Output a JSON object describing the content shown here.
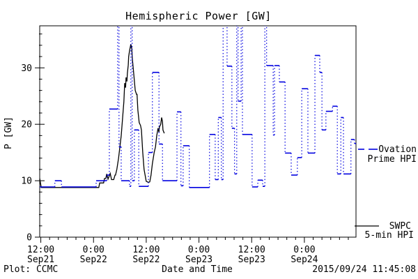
{
  "title": "Hemispheric Power [GW]",
  "axes": {
    "y_label": "P [GW]",
    "x_label": "Date and Time",
    "y_tick_values": [
      0,
      10,
      20,
      30
    ],
    "y_minor_step": 2,
    "y_max": 37.45,
    "x_major_ticks": [
      {
        "time": "12:00",
        "date": "Sep21"
      },
      {
        "time": "0:00",
        "date": "Sep22"
      },
      {
        "time": "12:00",
        "date": "Sep22"
      },
      {
        "time": "0:00",
        "date": "Sep23"
      },
      {
        "time": "12:00",
        "date": "Sep23"
      },
      {
        "time": "0:00",
        "date": "Sep24"
      }
    ],
    "x_major_step_hours": 12,
    "x_minor_step_hours": 2
  },
  "legend": {
    "ovation": {
      "line1": "Ovation",
      "line2": "Prime HPI"
    },
    "swpc": {
      "line1": "SWPC",
      "line2": "5-min HPI"
    }
  },
  "footer": {
    "credit": "Plot: CCMC",
    "timestamp": "2015/09/24 11:45:08"
  },
  "colors": {
    "ovation_blue": "#0000e0",
    "swpc_black": "#000000",
    "frame": "#000000",
    "background": "#ffffff"
  },
  "chart_data": {
    "type": "line",
    "title": "Hemispheric Power [GW]",
    "xlabel": "Date and Time",
    "ylabel": "P [GW]",
    "x_unit": "hours since 2015-09-21 12:00 UT",
    "x_range_hours": [
      -0.25,
      71.75
    ],
    "y_range": [
      0,
      37.45
    ],
    "grid": false,
    "legend_position": "right-outside",
    "note": "Ovation series is a step function; values of 40 mark off-scale spikes clipped at the plot top (drawn as dotted verticals).",
    "series": [
      {
        "name": "SWPC 5-min HPI",
        "style": "solid-line",
        "points": [
          [
            -0.25,
            10.4
          ],
          [
            0.1,
            8.8
          ],
          [
            13.2,
            8.8
          ],
          [
            13.4,
            9.6
          ],
          [
            14.3,
            9.6
          ],
          [
            14.5,
            10.4
          ],
          [
            14.8,
            10.4
          ],
          [
            15.0,
            11.2
          ],
          [
            15.3,
            10.3
          ],
          [
            15.8,
            11.3
          ],
          [
            16.1,
            10.2
          ],
          [
            16.6,
            10.2
          ],
          [
            16.9,
            11.0
          ],
          [
            17.0,
            11.0
          ],
          [
            17.3,
            12.0
          ],
          [
            17.7,
            14.0
          ],
          [
            18.0,
            16.0
          ],
          [
            18.3,
            18.0
          ],
          [
            18.6,
            21.0
          ],
          [
            18.9,
            24.0
          ],
          [
            19.1,
            27.3
          ],
          [
            19.3,
            26.5
          ],
          [
            19.4,
            28.3
          ],
          [
            19.6,
            27.6
          ],
          [
            19.7,
            29.0
          ],
          [
            19.9,
            30.5
          ],
          [
            20.0,
            32.0
          ],
          [
            20.2,
            33.0
          ],
          [
            20.4,
            33.8
          ],
          [
            20.5,
            34.2
          ],
          [
            20.7,
            33.5
          ],
          [
            20.8,
            32.0
          ],
          [
            21.2,
            28.5
          ],
          [
            21.5,
            26.0
          ],
          [
            21.8,
            25.3
          ],
          [
            21.9,
            25.3
          ],
          [
            22.1,
            22.5
          ],
          [
            22.4,
            20.3
          ],
          [
            22.7,
            19.8
          ],
          [
            22.9,
            19.0
          ],
          [
            23.2,
            15.0
          ],
          [
            23.5,
            12.0
          ],
          [
            23.9,
            10.3
          ],
          [
            24.0,
            9.9
          ],
          [
            24.5,
            9.7
          ],
          [
            24.8,
            9.8
          ],
          [
            25.1,
            11.0
          ],
          [
            25.4,
            13.0
          ],
          [
            25.8,
            15.0
          ],
          [
            26.1,
            16.0
          ],
          [
            26.4,
            18.0
          ],
          [
            26.7,
            19.3
          ],
          [
            26.9,
            18.6
          ],
          [
            27.0,
            19.5
          ],
          [
            27.3,
            20.0
          ],
          [
            27.5,
            21.2
          ],
          [
            27.7,
            20.5
          ],
          [
            27.8,
            19.0
          ],
          [
            28.1,
            18.4
          ]
        ]
      },
      {
        "name": "Ovation Prime HPI",
        "style": "step-solid-caps-dotted-verticals",
        "steps": [
          [
            -0.25,
            8.9
          ],
          [
            3.2,
            10.0
          ],
          [
            4.7,
            8.9
          ],
          [
            12.6,
            10.0
          ],
          [
            15.0,
            11.0
          ],
          [
            15.6,
            22.7
          ],
          [
            17.5,
            40
          ],
          [
            17.8,
            16.0
          ],
          [
            18.3,
            10.0
          ],
          [
            20.2,
            9.0
          ],
          [
            20.5,
            40
          ],
          [
            20.8,
            10.0
          ],
          [
            21.3,
            19.0
          ],
          [
            22.3,
            9.0
          ],
          [
            24.5,
            15.0
          ],
          [
            25.4,
            29.2
          ],
          [
            26.9,
            16.5
          ],
          [
            27.7,
            10.0
          ],
          [
            31.0,
            22.2
          ],
          [
            31.9,
            9.1
          ],
          [
            32.4,
            16.2
          ],
          [
            33.8,
            8.8
          ],
          [
            38.4,
            18.2
          ],
          [
            39.7,
            10.2
          ],
          [
            40.4,
            21.2
          ],
          [
            41.1,
            10.2
          ],
          [
            41.5,
            40
          ],
          [
            42.4,
            30.3
          ],
          [
            43.5,
            19.3
          ],
          [
            44.1,
            11.2
          ],
          [
            44.6,
            40
          ],
          [
            44.9,
            24.1
          ],
          [
            45.6,
            40
          ],
          [
            45.9,
            18.2
          ],
          [
            48.1,
            8.9
          ],
          [
            49.4,
            10.1
          ],
          [
            50.5,
            9.0
          ],
          [
            51.0,
            40
          ],
          [
            51.4,
            30.4
          ],
          [
            52.9,
            18.1
          ],
          [
            53.2,
            30.4
          ],
          [
            54.3,
            27.5
          ],
          [
            55.6,
            14.9
          ],
          [
            57.0,
            11.0
          ],
          [
            58.4,
            14.1
          ],
          [
            59.4,
            26.3
          ],
          [
            60.8,
            14.9
          ],
          [
            62.4,
            32.2
          ],
          [
            63.5,
            29.2
          ],
          [
            64.0,
            19.0
          ],
          [
            64.9,
            22.3
          ],
          [
            66.4,
            23.2
          ],
          [
            67.5,
            11.2
          ],
          [
            68.3,
            21.2
          ],
          [
            68.9,
            11.2
          ],
          [
            70.6,
            17.3
          ],
          [
            71.4,
            16.6
          ]
        ]
      }
    ]
  }
}
